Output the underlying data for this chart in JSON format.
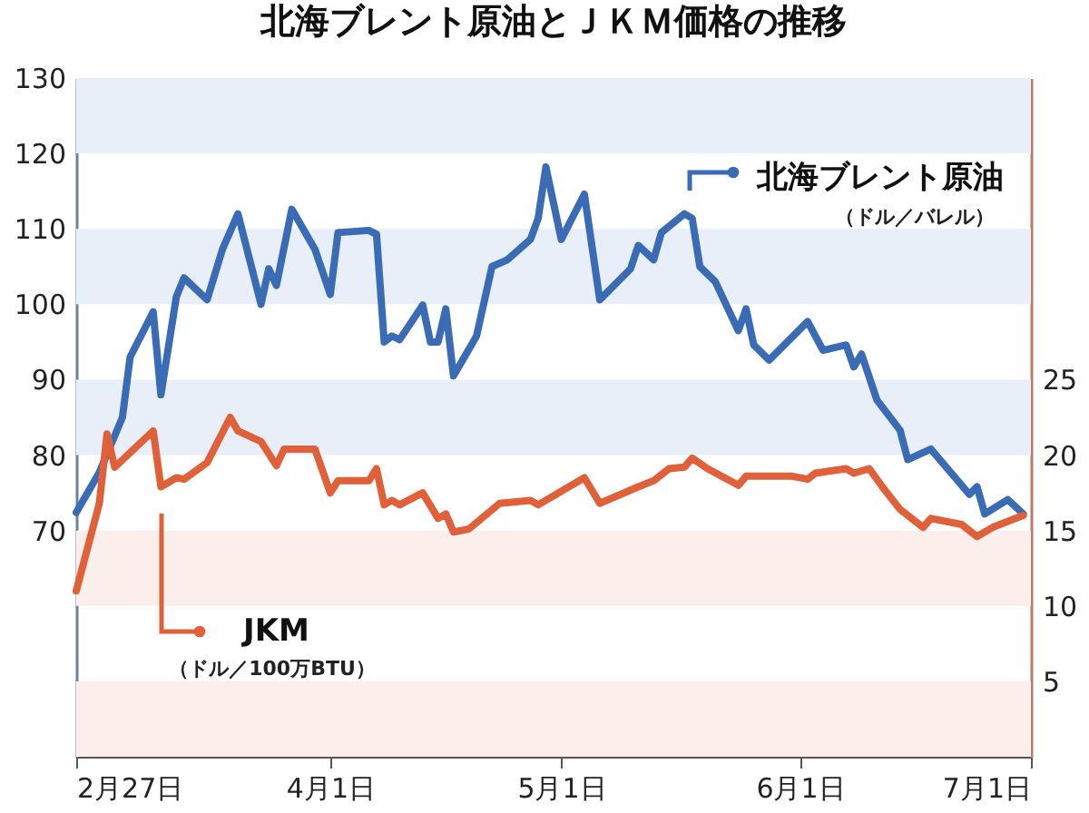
{
  "chart_data": {
    "type": "line",
    "title": "北海ブレント原油とＪＫＭ価格の推移",
    "xlim": [
      "--02-27",
      "--07-01"
    ],
    "xticks": [
      {
        "value": "--02-27",
        "label": "2月27日"
      },
      {
        "value": "--04-01",
        "label": "4月1日"
      },
      {
        "value": "--05-01",
        "label": "5月1日"
      },
      {
        "value": "--06-01",
        "label": "6月1日"
      },
      {
        "value": "--07-01",
        "label": "7月1日"
      }
    ],
    "ylim": [
      40,
      130
    ],
    "yticks": [
      70,
      80,
      90,
      100,
      110,
      120,
      130
    ],
    "y2lim": [
      0,
      45
    ],
    "y2ticks": [
      5,
      10,
      15,
      20,
      25
    ],
    "legend": "top right",
    "grid": false,
    "marker": "none",
    "line_style": "solid",
    "bands": [
      {
        "axis": "y",
        "from": 120,
        "to": 130,
        "color": "#e9eff8"
      },
      {
        "axis": "y",
        "from": 100,
        "to": 110,
        "color": "#e9eff8"
      },
      {
        "axis": "y",
        "from": 80,
        "to": 90,
        "color": "#e9eff8"
      },
      {
        "axis": "y2",
        "from": 10,
        "to": 15,
        "color": "#fcefeb"
      },
      {
        "axis": "y2",
        "from": 0,
        "to": 5,
        "color": "#fcefeb"
      }
    ],
    "annotations": [
      "（ドル／バレル）",
      "（ドル／100万BTU）"
    ],
    "series": [
      {
        "name": "北海ブレント原油",
        "color": "#3a6bb5",
        "x": [
          "--02-27",
          "--03-02",
          "--03-05",
          "--03-06",
          "--03-09",
          "--03-10",
          "--03-12",
          "--03-13",
          "--03-16",
          "--03-18",
          "--03-20",
          "--03-23",
          "--03-24",
          "--03-25",
          "--03-27",
          "--03-30",
          "--04-01",
          "--04-02",
          "--04-06",
          "--04-07",
          "--04-08",
          "--04-09",
          "--04-10",
          "--04-13",
          "--04-14",
          "--04-15",
          "--04-16",
          "--04-17",
          "--04-20",
          "--04-22",
          "--04-24",
          "--04-27",
          "--04-28",
          "--04-29",
          "--05-01",
          "--05-04",
          "--05-06",
          "--05-10",
          "--05-11",
          "--05-13",
          "--05-14",
          "--05-17",
          "--05-18",
          "--05-19",
          "--05-21",
          "--05-24",
          "--05-25",
          "--05-26",
          "--05-28",
          "--06-02",
          "--06-04",
          "--06-07",
          "--06-08",
          "--06-09",
          "--06-11",
          "--06-14",
          "--06-15",
          "--06-18",
          "--06-23",
          "--06-24",
          "--06-25",
          "--06-28",
          "--06-30"
        ],
        "values": [
          72.4,
          77.7,
          85,
          93,
          99,
          88,
          101,
          103.5,
          100.6,
          107.3,
          112,
          100,
          104.7,
          102.5,
          112.6,
          107.3,
          101.3,
          109.5,
          109.8,
          109.3,
          95,
          95.8,
          95.3,
          99.9,
          95,
          95,
          99.4,
          90.5,
          95.8,
          105,
          105.9,
          108.6,
          111.4,
          118.2,
          108.6,
          114.6,
          100.6,
          104.7,
          107.8,
          105.9,
          109.5,
          112,
          111.4,
          105,
          103,
          96.5,
          99.4,
          94.6,
          92.6,
          97.7,
          93.9,
          94.6,
          91.7,
          93.4,
          87.3,
          83.3,
          79.4,
          80.8,
          74.8,
          75.8,
          72.2,
          74.1,
          72.2
        ]
      },
      {
        "name": "JKM",
        "color": "#e0603a",
        "axis": "y2",
        "x": [
          "--02-27",
          "--03-02",
          "--03-03",
          "--03-04",
          "--03-09",
          "--03-10",
          "--03-12",
          "--03-13",
          "--03-16",
          "--03-19",
          "--03-20",
          "--03-23",
          "--03-25",
          "--03-26",
          "--03-30",
          "--04-01",
          "--04-02",
          "--04-06",
          "--04-07",
          "--04-08",
          "--04-09",
          "--04-10",
          "--04-13",
          "--04-15",
          "--04-16",
          "--04-17",
          "--04-19",
          "--04-23",
          "--04-27",
          "--04-28",
          "--05-04",
          "--05-06",
          "--05-11",
          "--05-13",
          "--05-15",
          "--05-17",
          "--05-18",
          "--05-20",
          "--05-24",
          "--05-25",
          "--05-31",
          "--06-02",
          "--06-03",
          "--06-07",
          "--06-08",
          "--06-10",
          "--06-12",
          "--06-14",
          "--06-17",
          "--06-18",
          "--06-22",
          "--06-24",
          "--06-26",
          "--06-30"
        ],
        "values": [
          11,
          16.8,
          21.4,
          19.2,
          21.6,
          17.9,
          18.5,
          18.4,
          19.5,
          22.5,
          21.6,
          20.9,
          19.3,
          20.4,
          20.4,
          17.5,
          18.3,
          18.3,
          19.1,
          16.7,
          17,
          16.7,
          17.5,
          15.8,
          16.1,
          14.9,
          15.1,
          16.8,
          17,
          16.7,
          18.5,
          16.8,
          17.9,
          18.3,
          19.1,
          19.2,
          19.8,
          19.1,
          18,
          18.6,
          18.6,
          18.4,
          18.8,
          19.1,
          18.8,
          19.1,
          17.7,
          16.4,
          15.2,
          15.8,
          15.4,
          14.6,
          15.2,
          16
        ]
      }
    ]
  }
}
